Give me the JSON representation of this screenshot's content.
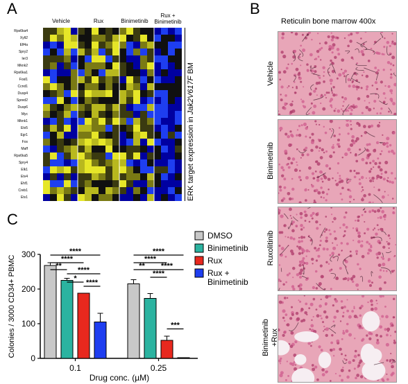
{
  "panels": {
    "a": "A",
    "b": "B",
    "c": "C"
  },
  "heatmap": {
    "groups": [
      "Vehicle",
      "Rux",
      "Binimetinib",
      "Rux +\nBinimetinib"
    ],
    "genes": [
      "Rps6ka4",
      "Xylt2",
      "Elf4a",
      "Spry2",
      "Ier3",
      "Mknk2",
      "Rps6ka1",
      "Fosl1",
      "Ccnd1",
      "Dusp4",
      "Spred2",
      "Dusp6",
      "Myc",
      "Mknk1",
      "Etv5",
      "Egr1",
      "Fos",
      "Maff",
      "Rps6ka5",
      "Spry4",
      "Elk1",
      "Etv4",
      "Ehf1",
      "Creb1",
      "Etv1"
    ],
    "side_label_prefix": "ERK target expression in ",
    "side_label_italic": "Jak2V617F",
    "side_label_suffix": " BM"
  },
  "micro": {
    "title": "Reticulin bone marrow 400x",
    "labels": [
      "Vehicle",
      "Binimetinib",
      "Ruxolitinib",
      "Binimetinib\n+Rux"
    ]
  },
  "colors": {
    "dmso": "#c8c8c8",
    "binimetinib": "#2bb3a0",
    "rux": "#e8281e",
    "combo": "#1e3ef0",
    "tissue": "#e8a6b8"
  },
  "chart_data": {
    "type": "bar",
    "categories": [
      "0.1",
      "0.25"
    ],
    "xlabel": "Drug conc. (µM)",
    "ylabel": "Colonies / 3000 CD34+ PBMC",
    "ylim": [
      0,
      300
    ],
    "yticks": [
      0,
      100,
      200,
      300
    ],
    "series": [
      {
        "name": "DMSO",
        "values": [
          268,
          215
        ],
        "errors": [
          8,
          12
        ]
      },
      {
        "name": "Binimetinib",
        "values": [
          225,
          173
        ],
        "errors": [
          6,
          14
        ]
      },
      {
        "name": "Rux",
        "values": [
          188,
          52
        ],
        "errors": [
          0,
          12
        ]
      },
      {
        "name": "Rux +\nBinimetinib",
        "values": [
          105,
          2
        ],
        "errors": [
          25,
          0
        ]
      }
    ],
    "significance": [
      {
        "label": "****"
      },
      {
        "label": "****"
      },
      {
        "label": "**"
      },
      {
        "label": "****"
      },
      {
        "label": "*"
      },
      {
        "label": "****"
      },
      {
        "label": "****"
      },
      {
        "label": "****"
      },
      {
        "label": "**"
      },
      {
        "label": "****"
      },
      {
        "label": "****"
      },
      {
        "label": "***"
      }
    ]
  }
}
